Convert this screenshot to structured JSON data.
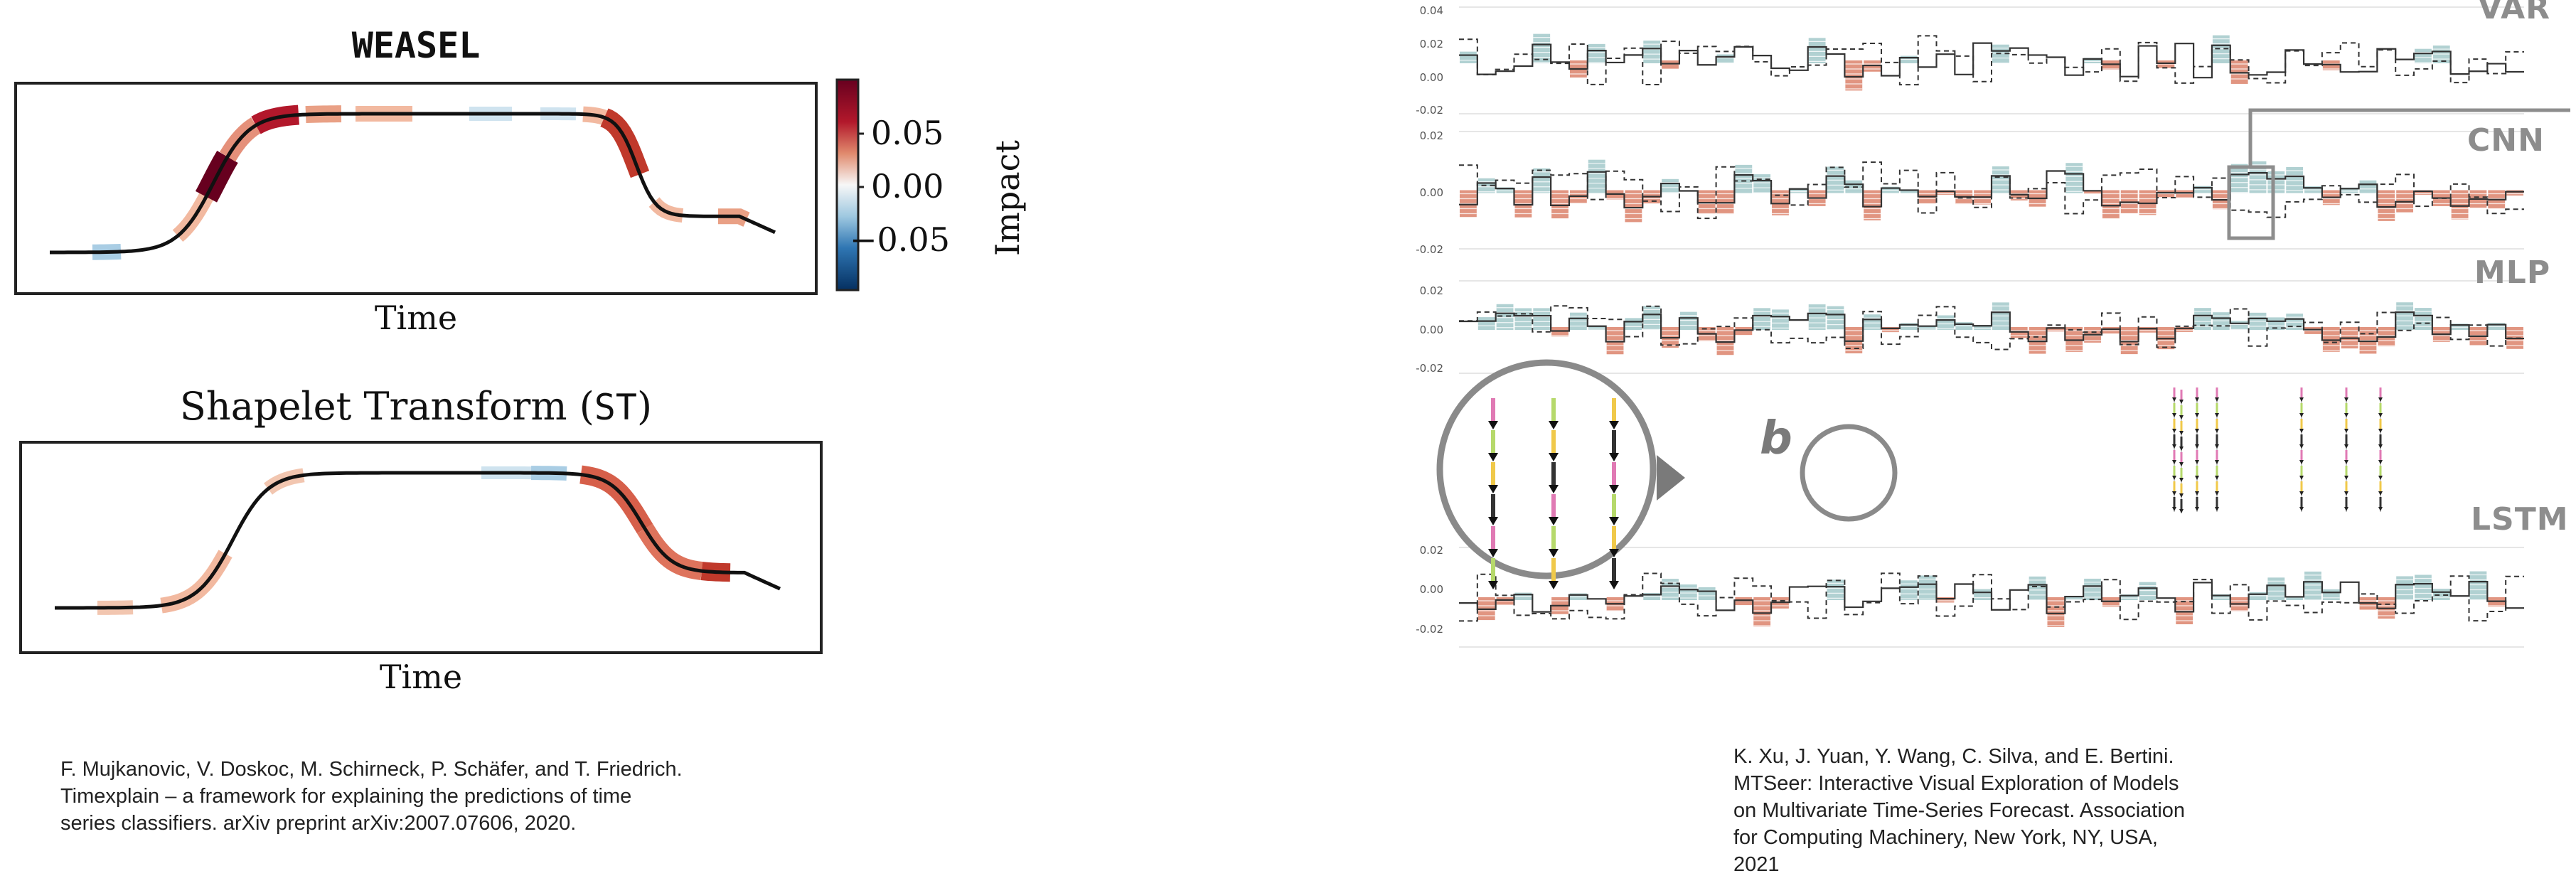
{
  "left_figure": {
    "weasel": {
      "title": "WEASEL",
      "xlabel": "Time",
      "colorbar": {
        "ticks": [
          "0.05",
          "0.00",
          "−0.05"
        ],
        "label": "Impact",
        "colors": {
          "high": "#67001f",
          "mid": "#f7f7f7",
          "low": "#053061"
        }
      }
    },
    "st": {
      "title_prefix": "Shapelet Transform (",
      "title_mono": "ST",
      "title_suffix": ")",
      "xlabel": "Time"
    },
    "citation": [
      "F. Mujkanovic, V. Doskoc, M. Schirneck, P. Schäfer, and T. Friedrich.",
      "Timexplain – a framework for explaining the predictions of time",
      "series classifiers. arXiv preprint arXiv:2007.07606, 2020."
    ]
  },
  "right_figure": {
    "models": [
      {
        "label": "VAR",
        "ticks": [
          "0.04",
          "0.02",
          "0.00",
          "-0.02"
        ]
      },
      {
        "label": "CNN",
        "ticks": [
          "0.02",
          "0.00",
          "-0.02"
        ]
      },
      {
        "label": "MLP",
        "ticks": [
          "0.02",
          "0.00",
          "-0.02"
        ]
      },
      {
        "label": "LSTM",
        "ticks": [
          "0.02",
          "0.00",
          "-0.02"
        ]
      }
    ],
    "inset_label": "b",
    "colors": {
      "positive": "#de8a73",
      "negative": "#a9cccd",
      "line": "#333333",
      "label": "#8d8d8d"
    },
    "citation": [
      "K. Xu, J. Yuan, Y. Wang, C. Silva, and E. Bertini.",
      "MTSeer: Interactive Visual Exploration of Models",
      "on Multivariate Time-Series Forecast. Association",
      "for Computing Machinery, New York, NY, USA,",
      "2021"
    ]
  }
}
